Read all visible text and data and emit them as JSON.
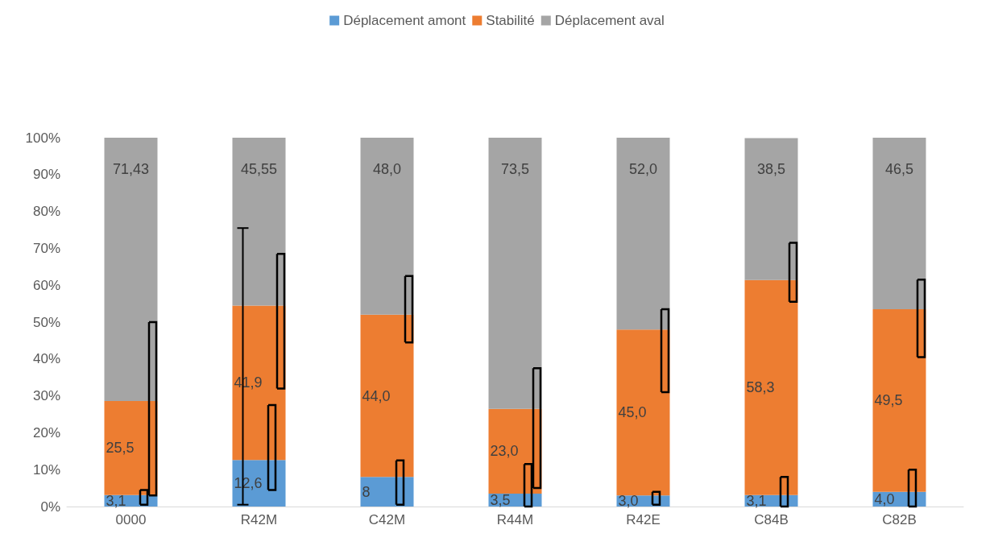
{
  "chart_data": {
    "type": "bar",
    "stacked": true,
    "legend": "top",
    "grid": false,
    "categories": [
      "0000",
      "R42M",
      "C42M",
      "R44M",
      "R42E",
      "C84B",
      "C82B"
    ],
    "ylim": [
      0,
      100
    ],
    "yticks": [
      {
        "value": 0,
        "label": "0%"
      },
      {
        "value": 10,
        "label": "10%"
      },
      {
        "value": 20,
        "label": "20%"
      },
      {
        "value": 30,
        "label": "30%"
      },
      {
        "value": 40,
        "label": "40%"
      },
      {
        "value": 50,
        "label": "50%"
      },
      {
        "value": 60,
        "label": "60%"
      },
      {
        "value": 70,
        "label": "70%"
      },
      {
        "value": 80,
        "label": "80%"
      },
      {
        "value": 90,
        "label": "90%"
      },
      {
        "value": 100,
        "label": "100%"
      }
    ],
    "series": [
      {
        "name": "Déplacement amont",
        "color": "#5b9bd5",
        "values": [
          3.1,
          12.6,
          8,
          3.5,
          3.0,
          3.1,
          4.0
        ],
        "value_labels": [
          "3,1",
          "12,6",
          "8",
          "3,5",
          "3,0",
          "3,1",
          "4,0"
        ],
        "errors": [
          [
            0.5,
            4.5
          ],
          [
            4.5,
            27.5
          ],
          [
            0.5,
            12.5
          ],
          [
            0,
            11.5
          ],
          [
            0.5,
            4
          ],
          [
            0,
            8
          ],
          [
            0,
            10
          ]
        ]
      },
      {
        "name": "Stabilité",
        "color": "#ed7d31",
        "values": [
          25.5,
          41.9,
          44.0,
          23.0,
          45.0,
          58.3,
          49.5
        ],
        "value_labels": [
          "25,5",
          "41,9",
          "44,0",
          "23,0",
          "45,0",
          "58,3",
          "49,5"
        ],
        "errors": [
          [
            3,
            50
          ],
          [
            32,
            68.5
          ],
          [
            44.5,
            62.5
          ],
          [
            5,
            37.5
          ],
          [
            31,
            53.5
          ],
          [
            55.5,
            71.5
          ],
          [
            40.5,
            61.5
          ]
        ]
      },
      {
        "name": "Déplacement aval",
        "color": "#a5a5a5",
        "values": [
          71.43,
          45.55,
          48.0,
          73.5,
          52.0,
          38.5,
          46.5
        ],
        "value_labels": [
          "71,43",
          "45,55",
          "48,0",
          "73,5",
          "52,0",
          "38,5",
          "46,5"
        ],
        "errors": [
          null,
          [
            0.5,
            75.5
          ],
          null,
          null,
          null,
          null,
          null
        ]
      }
    ]
  }
}
